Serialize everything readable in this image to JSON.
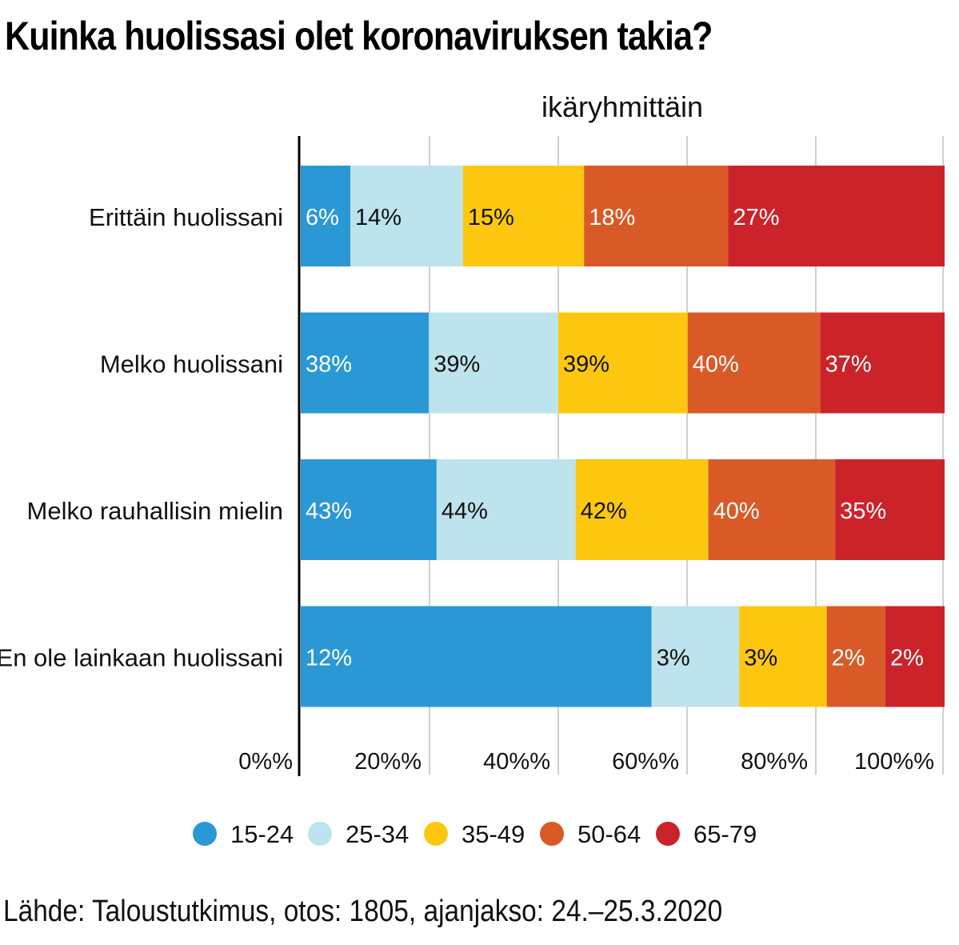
{
  "title": "Kuinka huolissasi olet koronaviruksen takia?",
  "source": "Lähde: Taloustutkimus, otos: 1805, ajanjakso: 24.–25.3.2020",
  "colors": {
    "15-24": "#2b98d6",
    "25-34": "#bde3ec",
    "35-49": "#fdc70f",
    "50-64": "#d95a27",
    "65-79": "#cc2229",
    "grid": "#cfcfcf",
    "axis": "#000000"
  },
  "chart_data": {
    "type": "bar",
    "orientation": "horizontal",
    "stacked": true,
    "subtitle": "ikäryhmittäin",
    "categories": [
      "Erittäin huolissani",
      "Melko huolissani",
      "Melko rauhallisin mielin",
      "En ole lainkaan huolissani"
    ],
    "series": [
      {
        "name": "15-24",
        "labels": [
          "6%",
          "38%",
          "43%",
          "12%"
        ],
        "values": [
          7.7,
          19.9,
          21.1,
          54.5
        ]
      },
      {
        "name": "25-34",
        "labels": [
          "14%",
          "39%",
          "44%",
          "3%"
        ],
        "values": [
          17.5,
          20.1,
          21.6,
          13.6
        ]
      },
      {
        "name": "35-49",
        "labels": [
          "15%",
          "39%",
          "42%",
          "3%"
        ],
        "values": [
          18.8,
          20.1,
          20.6,
          13.6
        ]
      },
      {
        "name": "50-64",
        "labels": [
          "18%",
          "40%",
          "40%",
          "2%"
        ],
        "values": [
          22.4,
          20.6,
          19.7,
          9.1
        ]
      },
      {
        "name": "65-79",
        "labels": [
          "27%",
          "37%",
          "35%",
          "2%"
        ],
        "values": [
          33.6,
          19.3,
          17.0,
          9.2
        ]
      }
    ],
    "xticks": [
      "0%%",
      "20%%",
      "40%%",
      "60%%",
      "80%%",
      "100%%"
    ],
    "xlim": [
      0,
      100
    ],
    "grid": true,
    "legend": "bottom"
  }
}
